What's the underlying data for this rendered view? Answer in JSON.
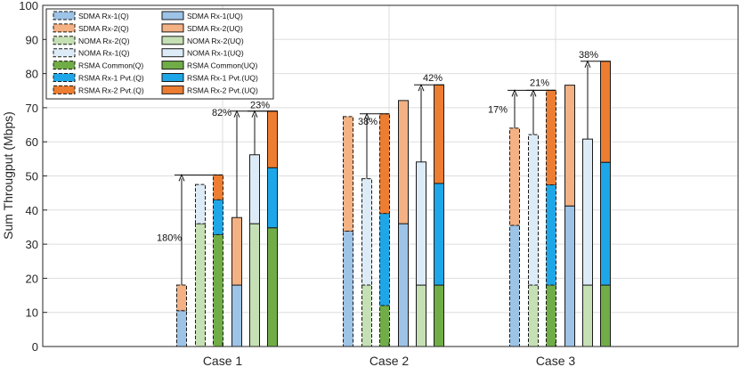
{
  "chart_data": {
    "type": "bar",
    "subtype": "grouped-stacked",
    "title": "",
    "xlabel": "",
    "ylabel": "Sum Througput (Mbps)",
    "ylim": [
      0,
      100
    ],
    "yticks": [
      0,
      10,
      20,
      30,
      40,
      50,
      60,
      70,
      80,
      90,
      100
    ],
    "grid": true,
    "legend_position": "top-left",
    "categories": [
      "Case 1",
      "Case 2",
      "Case 3"
    ],
    "colors": {
      "sdma_rx1": "#9dc3e6",
      "sdma_rx2": "#f4b183",
      "noma_rx2": "#c5e0b4",
      "noma_rx1": "#ddebf7",
      "rsma_common": "#70ad47",
      "rsma_rx1": "#1ea7e8",
      "rsma_rx2": "#ed7d31"
    },
    "legend": [
      {
        "label": "SDMA Rx-1(Q)",
        "color": "sdma_rx1",
        "dashed": true
      },
      {
        "label": "SDMA Rx-2(Q)",
        "color": "sdma_rx2",
        "dashed": true
      },
      {
        "label": "NOMA Rx-2(Q)",
        "color": "noma_rx2",
        "dashed": true
      },
      {
        "label": "NOMA Rx-1(Q)",
        "color": "noma_rx1",
        "dashed": true
      },
      {
        "label": "RSMA Common(Q)",
        "color": "rsma_common",
        "dashed": true
      },
      {
        "label": "RSMA Rx-1 Pvt.(Q)",
        "color": "rsma_rx1",
        "dashed": true
      },
      {
        "label": "RSMA Rx-2 Pvt.(Q)",
        "color": "rsma_rx2",
        "dashed": true
      },
      {
        "label": "SDMA Rx-1(UQ)",
        "color": "sdma_rx1",
        "dashed": false
      },
      {
        "label": "SDMA Rx-2(UQ)",
        "color": "sdma_rx2",
        "dashed": false
      },
      {
        "label": "NOMA Rx-2(UQ)",
        "color": "noma_rx2",
        "dashed": false
      },
      {
        "label": "NOMA Rx-1(UQ)",
        "color": "noma_rx1",
        "dashed": false
      },
      {
        "label": "RSMA Common(UQ)",
        "color": "rsma_common",
        "dashed": false
      },
      {
        "label": "RSMA Rx-1 Pvt.(UQ)",
        "color": "rsma_rx1",
        "dashed": false
      },
      {
        "label": "RSMA Rx-2 Pvt.(UQ)",
        "color": "rsma_rx2",
        "dashed": false
      }
    ],
    "groups": [
      {
        "case": "Case 1",
        "bars": [
          {
            "name": "SDMA (Q)",
            "dashed": true,
            "segments": [
              {
                "series": "sdma_rx1",
                "value": 10.5
              },
              {
                "series": "sdma_rx2",
                "value": 7.5
              }
            ]
          },
          {
            "name": "NOMA (Q)",
            "dashed": true,
            "segments": [
              {
                "series": "noma_rx2",
                "value": 36.0
              },
              {
                "series": "noma_rx1",
                "value": 11.5
              }
            ]
          },
          {
            "name": "RSMA (Q)",
            "dashed": true,
            "segments": [
              {
                "series": "rsma_common",
                "value": 32.8
              },
              {
                "series": "rsma_rx1",
                "value": 10.2
              },
              {
                "series": "rsma_rx2",
                "value": 7.3
              }
            ]
          },
          {
            "name": "SDMA (UQ)",
            "dashed": false,
            "segments": [
              {
                "series": "sdma_rx1",
                "value": 18.0
              },
              {
                "series": "sdma_rx2",
                "value": 19.8
              }
            ]
          },
          {
            "name": "NOMA (UQ)",
            "dashed": false,
            "segments": [
              {
                "series": "noma_rx2",
                "value": 36.0
              },
              {
                "series": "noma_rx1",
                "value": 20.2
              }
            ]
          },
          {
            "name": "RSMA (UQ)",
            "dashed": false,
            "segments": [
              {
                "series": "rsma_common",
                "value": 34.8
              },
              {
                "series": "rsma_rx1",
                "value": 17.6
              },
              {
                "series": "rsma_rx2",
                "value": 16.6
              }
            ]
          }
        ]
      },
      {
        "case": "Case 2",
        "bars": [
          {
            "name": "SDMA (Q)",
            "dashed": true,
            "segments": [
              {
                "series": "sdma_rx1",
                "value": 33.8
              },
              {
                "series": "sdma_rx2",
                "value": 33.6
              }
            ]
          },
          {
            "name": "NOMA (Q)",
            "dashed": true,
            "segments": [
              {
                "series": "noma_rx2",
                "value": 18.0
              },
              {
                "series": "noma_rx1",
                "value": 31.2
              }
            ]
          },
          {
            "name": "RSMA (Q)",
            "dashed": true,
            "segments": [
              {
                "series": "rsma_common",
                "value": 12.0
              },
              {
                "series": "rsma_rx1",
                "value": 27.0
              },
              {
                "series": "rsma_rx2",
                "value": 29.2
              }
            ]
          },
          {
            "name": "SDMA (UQ)",
            "dashed": false,
            "segments": [
              {
                "series": "sdma_rx1",
                "value": 36.0
              },
              {
                "series": "sdma_rx2",
                "value": 36.1
              }
            ]
          },
          {
            "name": "NOMA (UQ)",
            "dashed": false,
            "segments": [
              {
                "series": "noma_rx2",
                "value": 18.0
              },
              {
                "series": "noma_rx1",
                "value": 36.1
              }
            ]
          },
          {
            "name": "RSMA (UQ)",
            "dashed": false,
            "segments": [
              {
                "series": "rsma_common",
                "value": 18.0
              },
              {
                "series": "rsma_rx1",
                "value": 29.8
              },
              {
                "series": "rsma_rx2",
                "value": 28.9
              }
            ]
          }
        ]
      },
      {
        "case": "Case 3",
        "bars": [
          {
            "name": "SDMA (Q)",
            "dashed": true,
            "segments": [
              {
                "series": "sdma_rx1",
                "value": 35.5
              },
              {
                "series": "sdma_rx2",
                "value": 28.5
              }
            ]
          },
          {
            "name": "NOMA (Q)",
            "dashed": true,
            "segments": [
              {
                "series": "noma_rx2",
                "value": 18.0
              },
              {
                "series": "noma_rx1",
                "value": 44.1
              }
            ]
          },
          {
            "name": "RSMA (Q)",
            "dashed": true,
            "segments": [
              {
                "series": "rsma_common",
                "value": 18.0
              },
              {
                "series": "rsma_rx1",
                "value": 29.4
              },
              {
                "series": "rsma_rx2",
                "value": 27.7
              }
            ]
          },
          {
            "name": "SDMA (UQ)",
            "dashed": false,
            "segments": [
              {
                "series": "sdma_rx1",
                "value": 41.2
              },
              {
                "series": "sdma_rx2",
                "value": 35.4
              }
            ]
          },
          {
            "name": "NOMA (UQ)",
            "dashed": false,
            "segments": [
              {
                "series": "noma_rx2",
                "value": 18.0
              },
              {
                "series": "noma_rx1",
                "value": 42.8
              }
            ]
          },
          {
            "name": "RSMA (UQ)",
            "dashed": false,
            "segments": [
              {
                "series": "rsma_common",
                "value": 18.0
              },
              {
                "series": "rsma_rx1",
                "value": 36.0
              },
              {
                "series": "rsma_rx2",
                "value": 29.6
              }
            ]
          }
        ]
      }
    ],
    "annotations": [
      {
        "case": "Case 1",
        "label": "180%",
        "from_bar": 0,
        "to_bar": 2
      },
      {
        "case": "Case 1",
        "label": "82%",
        "from_bar": 3,
        "to_bar": 5
      },
      {
        "case": "Case 1",
        "label": "23%",
        "from_bar": 4,
        "to_bar": 5
      },
      {
        "case": "Case 2",
        "label": "38%",
        "from_bar": 1,
        "to_bar": 2
      },
      {
        "case": "Case 2",
        "label": "42%",
        "from_bar": 4,
        "to_bar": 5
      },
      {
        "case": "Case 3",
        "label": "17%",
        "from_bar": 0,
        "to_bar": 2
      },
      {
        "case": "Case 3",
        "label": "21%",
        "from_bar": 1,
        "to_bar": 2
      },
      {
        "case": "Case 3",
        "label": "38%",
        "from_bar": 4,
        "to_bar": 5
      }
    ]
  }
}
